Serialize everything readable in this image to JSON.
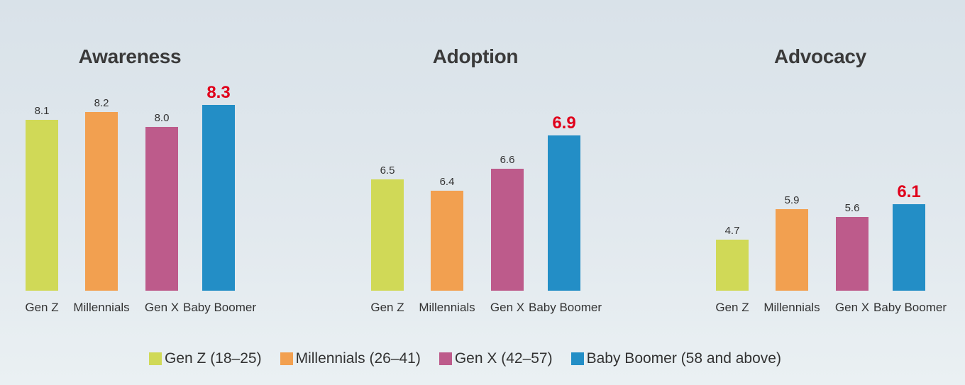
{
  "chart_data": [
    {
      "type": "bar",
      "title": "Awareness",
      "categories": [
        "Gen Z",
        "Millennials",
        "Gen X",
        "Baby Boomer"
      ],
      "values": [
        8.1,
        8.2,
        8.0,
        8.3
      ],
      "highlight_index": 3,
      "ylim": [
        5.76,
        8.3
      ]
    },
    {
      "type": "bar",
      "title": "Adoption",
      "categories": [
        "Gen Z",
        "Millennials",
        "Gen X",
        "Baby Boomer"
      ],
      "values": [
        6.5,
        6.4,
        6.6,
        6.9
      ],
      "highlight_index": 3,
      "ylim": [
        5.49,
        7.18
      ]
    },
    {
      "type": "bar",
      "title": "Advocacy",
      "categories": [
        "Gen Z",
        "Millennials",
        "Gen X",
        "Baby Boomer"
      ],
      "values": [
        4.7,
        5.9,
        5.6,
        6.1
      ],
      "highlight_index": 3,
      "ylim": [
        2.7,
        9.98
      ]
    }
  ],
  "legend": [
    {
      "label": "Gen Z (18–25)",
      "color": "#d0d957"
    },
    {
      "label": "Millennials (26–41)",
      "color": "#f2a050"
    },
    {
      "label": "Gen X (42–57)",
      "color": "#bd5b8b"
    },
    {
      "label": "Baby Boomer (58 and above)",
      "color": "#238ec6"
    }
  ]
}
